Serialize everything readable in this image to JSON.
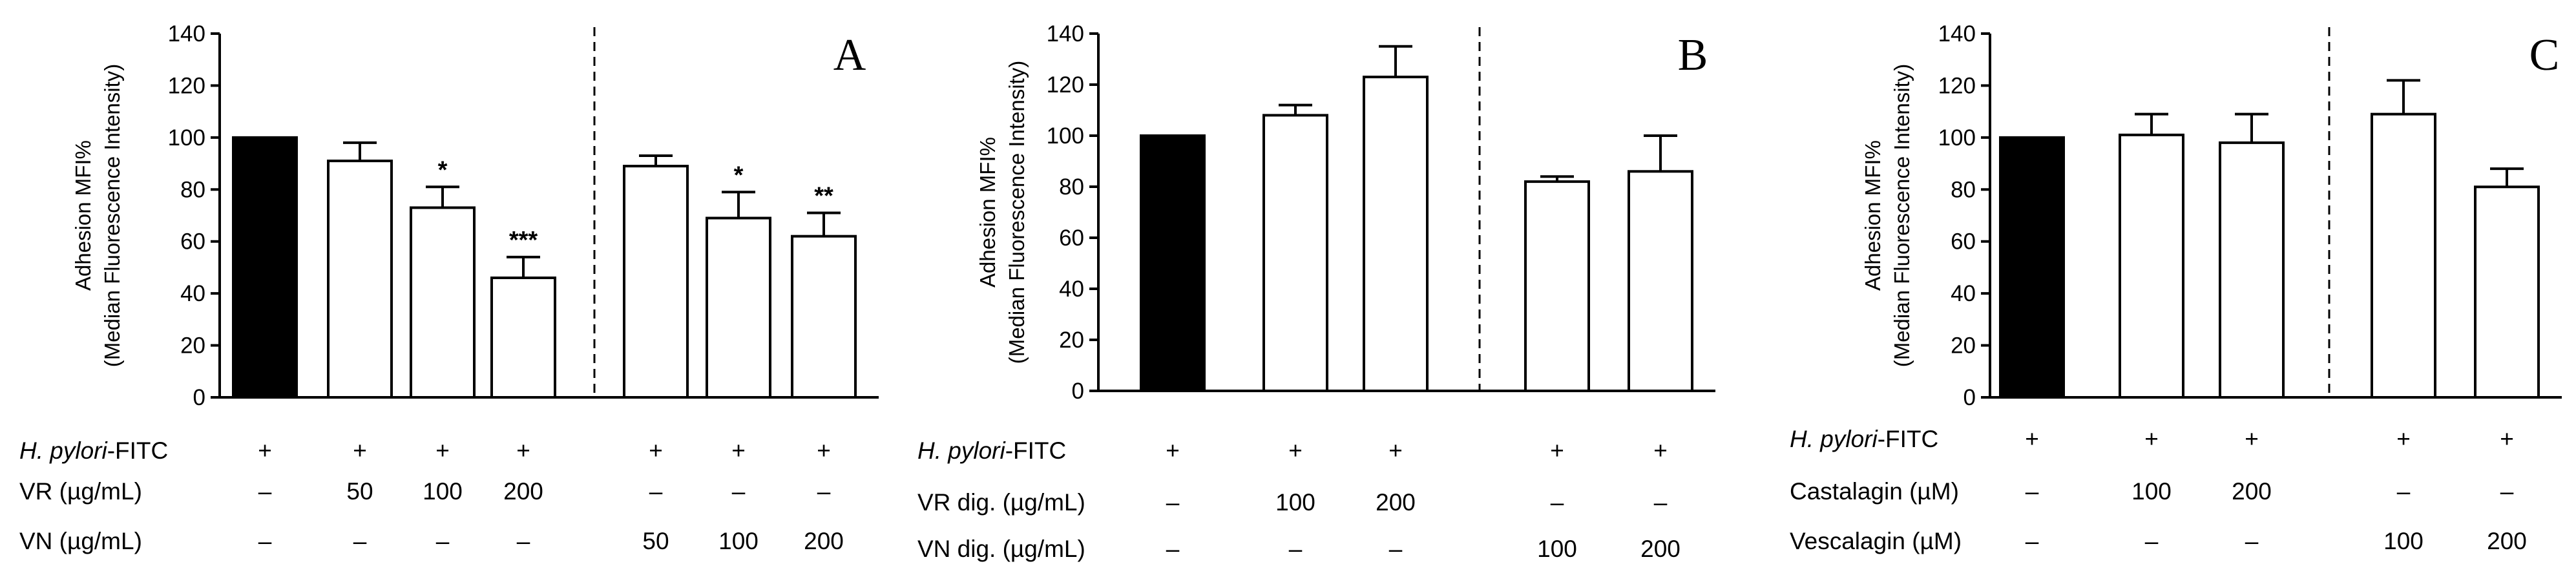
{
  "chart_data": [
    {
      "panel": "A",
      "type": "bar",
      "ylabel_line1": "Adhesion MFI%",
      "ylabel_line2": "(Median Fluorescence Intensity)",
      "ylim": [
        0,
        140
      ],
      "yticks": [
        "0",
        "20",
        "40",
        "60",
        "80",
        "100",
        "120",
        "140"
      ],
      "separator_after_bar": 3,
      "bars": [
        {
          "value": 100,
          "error": 0,
          "fill": "#000000",
          "sig": ""
        },
        {
          "value": 91,
          "error": 7,
          "fill": "#ffffff",
          "sig": ""
        },
        {
          "value": 73,
          "error": 8,
          "fill": "#ffffff",
          "sig": "*"
        },
        {
          "value": 46,
          "error": 8,
          "fill": "#ffffff",
          "sig": "***"
        },
        {
          "value": 89,
          "error": 4,
          "fill": "#ffffff",
          "sig": ""
        },
        {
          "value": 69,
          "error": 10,
          "fill": "#ffffff",
          "sig": "*"
        },
        {
          "value": 62,
          "error": 9,
          "fill": "#ffffff",
          "sig": "**"
        }
      ],
      "rows": [
        {
          "label_italic": "H. pylori",
          "label_rest": "-FITC",
          "cells": [
            "+",
            "+",
            "+",
            "+",
            "+",
            "+",
            "+"
          ]
        },
        {
          "label_italic": "",
          "label_rest": "VR (µg/mL)",
          "cells": [
            "–",
            "50",
            "100",
            "200",
            "–",
            "–",
            "–"
          ]
        },
        {
          "label_italic": "",
          "label_rest": "VN (µg/mL)",
          "cells": [
            "–",
            "–",
            "–",
            "–",
            "50",
            "100",
            "200"
          ]
        }
      ]
    },
    {
      "panel": "B",
      "type": "bar",
      "ylabel_line1": "Adhesion MFI%",
      "ylabel_line2": "(Median Fluorescence Intensity)",
      "ylim": [
        0,
        140
      ],
      "yticks": [
        "0",
        "20",
        "40",
        "60",
        "80",
        "100",
        "120",
        "140"
      ],
      "separator_after_bar": 2,
      "bars": [
        {
          "value": 100,
          "error": 0,
          "fill": "#000000",
          "sig": ""
        },
        {
          "value": 108,
          "error": 4,
          "fill": "#ffffff",
          "sig": ""
        },
        {
          "value": 123,
          "error": 12,
          "fill": "#ffffff",
          "sig": ""
        },
        {
          "value": 82,
          "error": 2,
          "fill": "#ffffff",
          "sig": ""
        },
        {
          "value": 86,
          "error": 14,
          "fill": "#ffffff",
          "sig": ""
        }
      ],
      "rows": [
        {
          "label_italic": "H. pylori",
          "label_rest": "-FITC",
          "cells": [
            "+",
            "+",
            "+",
            "+",
            "+"
          ]
        },
        {
          "label_italic": "",
          "label_rest": "VR dig. (µg/mL)",
          "cells": [
            "–",
            "100",
            "200",
            "–",
            "–"
          ]
        },
        {
          "label_italic": "",
          "label_rest": "VN dig. (µg/mL)",
          "cells": [
            "–",
            "–",
            "–",
            "100",
            "200"
          ]
        }
      ]
    },
    {
      "panel": "C",
      "type": "bar",
      "ylabel_line1": "Adhesion MFI%",
      "ylabel_line2": "(Median Fluorescence Intensity)",
      "ylim": [
        0,
        140
      ],
      "yticks": [
        "0",
        "20",
        "40",
        "60",
        "80",
        "100",
        "120",
        "140"
      ],
      "separator_after_bar": 2,
      "bars": [
        {
          "value": 100,
          "error": 0,
          "fill": "#000000",
          "sig": ""
        },
        {
          "value": 101,
          "error": 8,
          "fill": "#ffffff",
          "sig": ""
        },
        {
          "value": 98,
          "error": 11,
          "fill": "#ffffff",
          "sig": ""
        },
        {
          "value": 109,
          "error": 13,
          "fill": "#ffffff",
          "sig": ""
        },
        {
          "value": 81,
          "error": 7,
          "fill": "#ffffff",
          "sig": ""
        }
      ],
      "rows": [
        {
          "label_italic": "H. pylori",
          "label_rest": "-FITC",
          "cells": [
            "+",
            "+",
            "+",
            "+",
            "+"
          ]
        },
        {
          "label_italic": "",
          "label_rest": "Castalagin (µM)",
          "cells": [
            "–",
            "100",
            "200",
            "–",
            "–"
          ]
        },
        {
          "label_italic": "",
          "label_rest": "Vescalagin (µM)",
          "cells": [
            "–",
            "–",
            "–",
            "100",
            "200"
          ]
        }
      ]
    }
  ]
}
